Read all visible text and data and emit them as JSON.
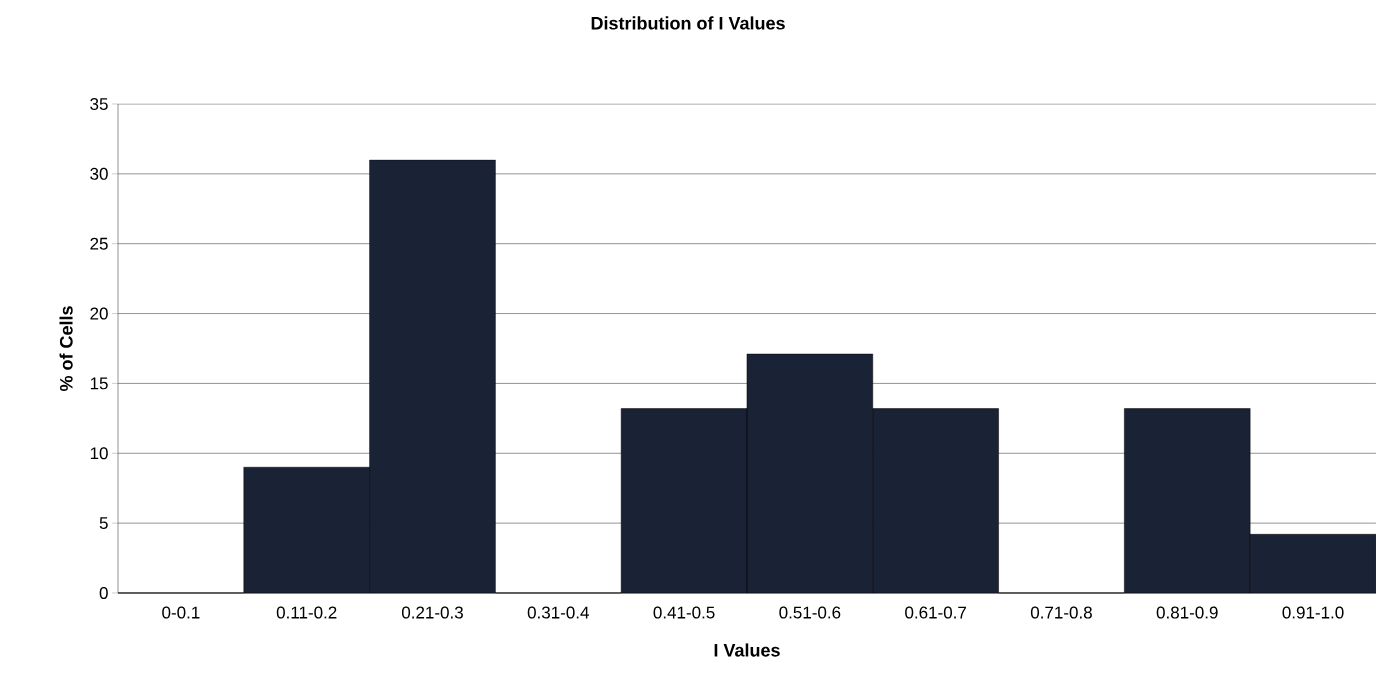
{
  "chart_data": {
    "type": "bar",
    "title": "Distribution of I Values",
    "xlabel": "I Values",
    "ylabel": "% of Cells",
    "categories": [
      "0-0.1",
      "0.11-0.2",
      "0.21-0.3",
      "0.31-0.4",
      "0.41-0.5",
      "0.51-0.6",
      "0.61-0.7",
      "0.71-0.8",
      "0.81-0.9",
      "0.91-1.0"
    ],
    "values": [
      0,
      9,
      31,
      0,
      13.2,
      17.1,
      13.2,
      0,
      13.2,
      4.2
    ],
    "color": "#1a2236",
    "ylim": [
      0,
      35
    ],
    "yticks": [
      0,
      5,
      10,
      15,
      20,
      25,
      30,
      35
    ],
    "grid": "y"
  }
}
